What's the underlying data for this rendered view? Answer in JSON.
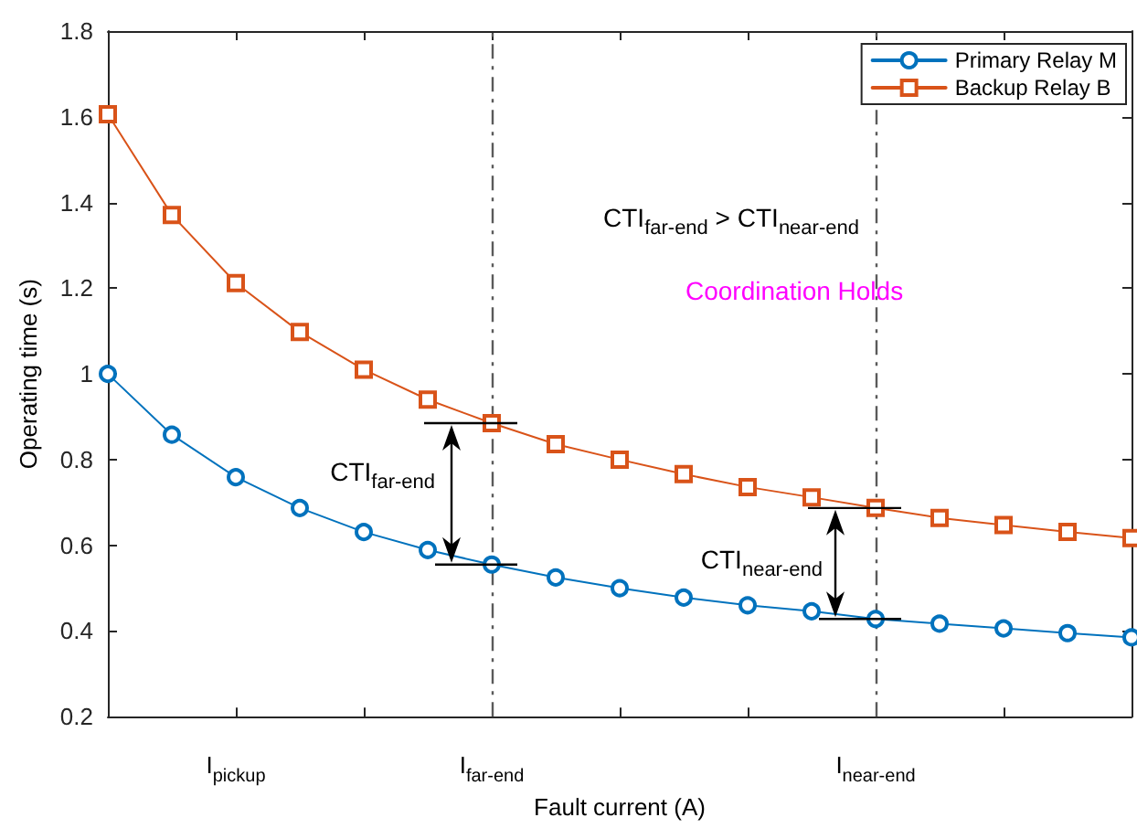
{
  "chart_data": {
    "type": "line",
    "xlabel": "Fault current (A)",
    "ylabel": "Operating time (s)",
    "categories": [
      null,
      null,
      "I$_{pickup}$",
      null,
      null,
      null,
      "I$_{far-end}$",
      null,
      null,
      null,
      null,
      null,
      "I$_{near-end}$",
      null,
      null,
      null,
      null
    ],
    "ylim": [
      0.2,
      1.8
    ],
    "yticks": [
      0.2,
      0.4,
      0.6,
      0.8,
      1,
      1.2,
      1.4,
      1.6,
      1.8
    ],
    "series": [
      {
        "name": "Primary Relay M",
        "color": "#0072bd",
        "marker": "circle",
        "values": [
          1.0,
          0.858,
          0.759,
          0.687,
          0.631,
          0.589,
          0.555,
          0.525,
          0.5,
          0.478,
          0.46,
          0.446,
          0.428,
          0.417,
          0.406,
          0.395,
          0.385
        ]
      },
      {
        "name": "Backup Relay B",
        "color": "#d95319",
        "marker": "square",
        "values": [
          1.606,
          1.371,
          1.212,
          1.098,
          1.01,
          0.94,
          0.885,
          0.836,
          0.8,
          0.766,
          0.736,
          0.712,
          0.687,
          0.664,
          0.647,
          0.631,
          0.617
        ]
      }
    ],
    "ref_lines": [
      {
        "axis": "x",
        "value": "I$_{far-end}$",
        "color": "#5a5a5a",
        "line_style": "dashed"
      },
      {
        "axis": "x",
        "value": "I$_{near-end}$",
        "color": "#5a5a5a",
        "line_style": "dashed"
      }
    ],
    "annotations": [
      "CTI$_{far-end}$ > CTI$_{near-end}$",
      "Coordination Holds",
      "CTI$_{far-end}$",
      "CTI$_{near-end}$"
    ],
    "legend": "top right",
    "grid": false,
    "line_style": "solid"
  }
}
